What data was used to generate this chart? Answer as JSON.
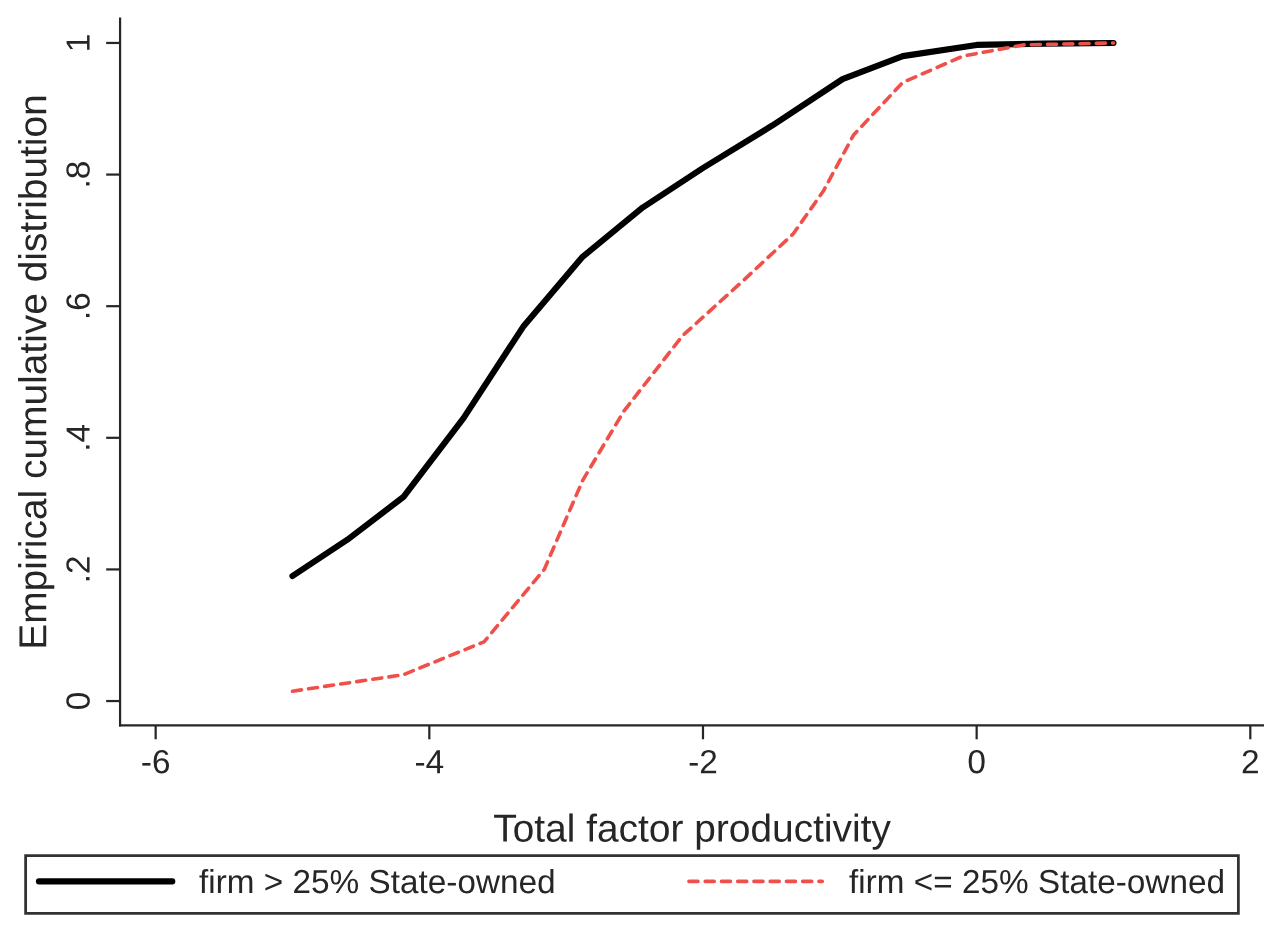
{
  "chart_data": {
    "type": "line",
    "xlabel": "Total factor productivity",
    "ylabel": "Empirical cumulative distribution",
    "xlim": [
      -6.26,
      2.1
    ],
    "xticks": [
      -6,
      -4,
      -2,
      0,
      2
    ],
    "ylim": [
      -0.037,
      1.037
    ],
    "yticks": [
      0,
      {
        "value": 0.2,
        "label": ".2"
      },
      {
        "value": 0.4,
        "label": ".4"
      },
      {
        "value": 0.6,
        "label": ".6"
      },
      {
        "value": 0.8,
        "label": ".8"
      },
      1
    ],
    "grid": false,
    "legend": "bottom",
    "series": [
      {
        "name": "firm > 25% State-owned",
        "color": "#000000",
        "line_style": "solid",
        "x": [
          -5,
          -4.6,
          -4.19,
          -3.75,
          -3.31,
          -2.88,
          -2.44,
          -2,
          -1.49,
          -0.98,
          -0.54,
          0,
          0.5,
          1
        ],
        "values": [
          0.19,
          0.245,
          0.31,
          0.43,
          0.57,
          0.675,
          0.75,
          0.81,
          0.875,
          0.945,
          0.98,
          0.997,
          0.999,
          1
        ]
      },
      {
        "name": "firm <= 25% State-owned",
        "color": "#f0504a",
        "line_style": "dashed",
        "x": [
          -5,
          -4.19,
          -3.6,
          -3.16,
          -2.88,
          -2.58,
          -2.15,
          -1.7,
          -1.34,
          -1.12,
          -0.9,
          -0.54,
          -0.1,
          0.34,
          1
        ],
        "values": [
          0.015,
          0.04,
          0.09,
          0.2,
          0.335,
          0.44,
          0.555,
          0.64,
          0.71,
          0.775,
          0.86,
          0.94,
          0.98,
          0.997,
          1
        ]
      }
    ]
  }
}
